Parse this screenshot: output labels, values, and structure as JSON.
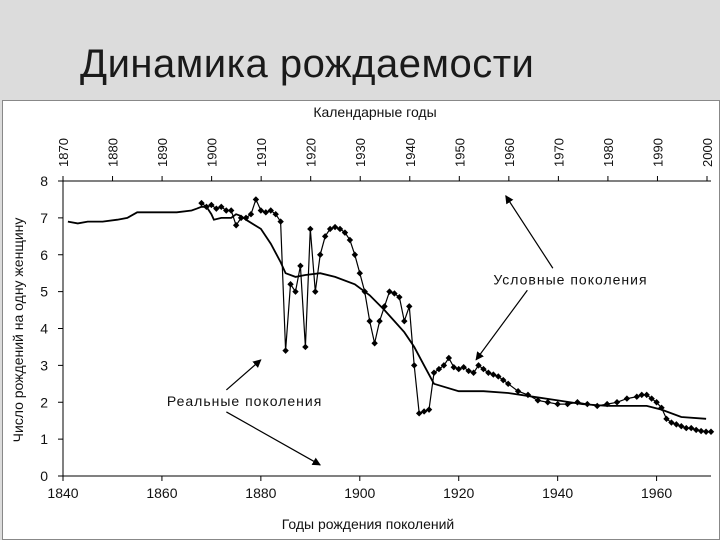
{
  "slide": {
    "title": "Динамика рождаемости"
  },
  "chart_data": {
    "type": "line",
    "title": "",
    "xlabel": "Годы рождения поколений",
    "ylabel": "Число рождений на одну женщину",
    "x2label": "Календарные годы",
    "xlim": [
      1840,
      1971
    ],
    "ylim": [
      0,
      8
    ],
    "xticks": [
      1840,
      1860,
      1880,
      1900,
      1920,
      1940,
      1960
    ],
    "yticks": [
      0,
      1,
      2,
      3,
      4,
      5,
      6,
      7,
      8
    ],
    "x2ticks": [
      1870,
      1880,
      1890,
      1900,
      1910,
      1920,
      1930,
      1940,
      1950,
      1960,
      1970,
      1980,
      1990,
      2000
    ],
    "grid": false,
    "series": [
      {
        "name": "Условные поколения",
        "style": "line",
        "color": "#000000",
        "x": [
          1841,
          1843,
          1845,
          1848,
          1851,
          1853,
          1855,
          1858,
          1860,
          1863,
          1866,
          1867,
          1868,
          1869,
          1870,
          1870.5,
          1872,
          1874,
          1875,
          1876,
          1877,
          1880,
          1882,
          1884,
          1885,
          1887,
          1889,
          1892,
          1895,
          1899,
          1902,
          1905,
          1907,
          1909,
          1911,
          1913,
          1915,
          1920,
          1925,
          1930,
          1935,
          1940,
          1945,
          1950,
          1955,
          1958,
          1961,
          1965,
          1970
        ],
        "y": [
          6.9,
          6.85,
          6.9,
          6.9,
          6.95,
          7.0,
          7.15,
          7.15,
          7.15,
          7.15,
          7.2,
          7.25,
          7.3,
          7.3,
          7.1,
          6.95,
          7.0,
          7.0,
          7.1,
          7.05,
          6.95,
          6.7,
          6.3,
          5.8,
          5.5,
          5.4,
          5.45,
          5.5,
          5.4,
          5.2,
          4.9,
          4.5,
          4.2,
          3.9,
          3.5,
          3.0,
          2.5,
          2.3,
          2.3,
          2.25,
          2.15,
          2.05,
          1.95,
          1.9,
          1.9,
          1.9,
          1.8,
          1.6,
          1.55
        ]
      },
      {
        "name": "Реальные поколения",
        "style": "markers",
        "color": "#000000",
        "x": [
          1868,
          1869,
          1870,
          1871,
          1872,
          1873,
          1874,
          1875,
          1876,
          1877,
          1878,
          1879,
          1880,
          1881,
          1882,
          1883,
          1884,
          1885,
          1886,
          1887,
          1888,
          1889,
          1890,
          1891,
          1892,
          1893,
          1894,
          1895,
          1896,
          1897,
          1898,
          1899,
          1900,
          1901,
          1902,
          1903,
          1904,
          1905,
          1906,
          1907,
          1908,
          1909,
          1910,
          1911,
          1912,
          1913,
          1914,
          1915,
          1916,
          1917,
          1918,
          1919,
          1920,
          1921,
          1922,
          1923,
          1924,
          1925,
          1926,
          1927,
          1928,
          1929,
          1930,
          1932,
          1934,
          1936,
          1938,
          1940,
          1942,
          1944,
          1946,
          1948,
          1950,
          1952,
          1954,
          1956,
          1957,
          1958,
          1959,
          1960,
          1961,
          1962,
          1963,
          1964,
          1965,
          1966,
          1967,
          1968,
          1969,
          1970,
          1971
        ],
        "y": [
          7.4,
          7.3,
          7.35,
          7.25,
          7.3,
          7.2,
          7.2,
          6.8,
          7.0,
          7.0,
          7.1,
          7.5,
          7.2,
          7.15,
          7.2,
          7.1,
          6.9,
          3.4,
          5.2,
          5.0,
          5.7,
          3.5,
          6.7,
          5.0,
          6.0,
          6.5,
          6.7,
          6.75,
          6.7,
          6.6,
          6.4,
          6.0,
          5.5,
          5.0,
          4.2,
          3.6,
          4.2,
          4.6,
          5.0,
          4.95,
          4.85,
          4.2,
          4.6,
          3.0,
          1.7,
          1.75,
          1.8,
          2.8,
          2.9,
          3.0,
          3.2,
          2.95,
          2.9,
          2.95,
          2.85,
          2.8,
          3.0,
          2.9,
          2.8,
          2.75,
          2.7,
          2.6,
          2.5,
          2.3,
          2.2,
          2.05,
          2.0,
          1.95,
          1.95,
          2.0,
          1.95,
          1.9,
          1.95,
          2.0,
          2.1,
          2.15,
          2.2,
          2.2,
          2.1,
          2.0,
          1.85,
          1.55,
          1.45,
          1.4,
          1.35,
          1.3,
          1.3,
          1.25,
          1.22,
          1.2,
          1.2
        ]
      }
    ],
    "annotations": [
      {
        "text": "Условные поколения",
        "label_x": 1927,
        "label_y": 5.2,
        "arrows": [
          [
            1929.5,
            7.6
          ],
          [
            1923.5,
            3.15
          ]
        ]
      },
      {
        "text": "Реальные поколения",
        "label_x": 1861,
        "label_y": 1.9,
        "arrows": [
          [
            1880,
            3.15
          ],
          [
            1892,
            0.3
          ]
        ]
      }
    ]
  }
}
